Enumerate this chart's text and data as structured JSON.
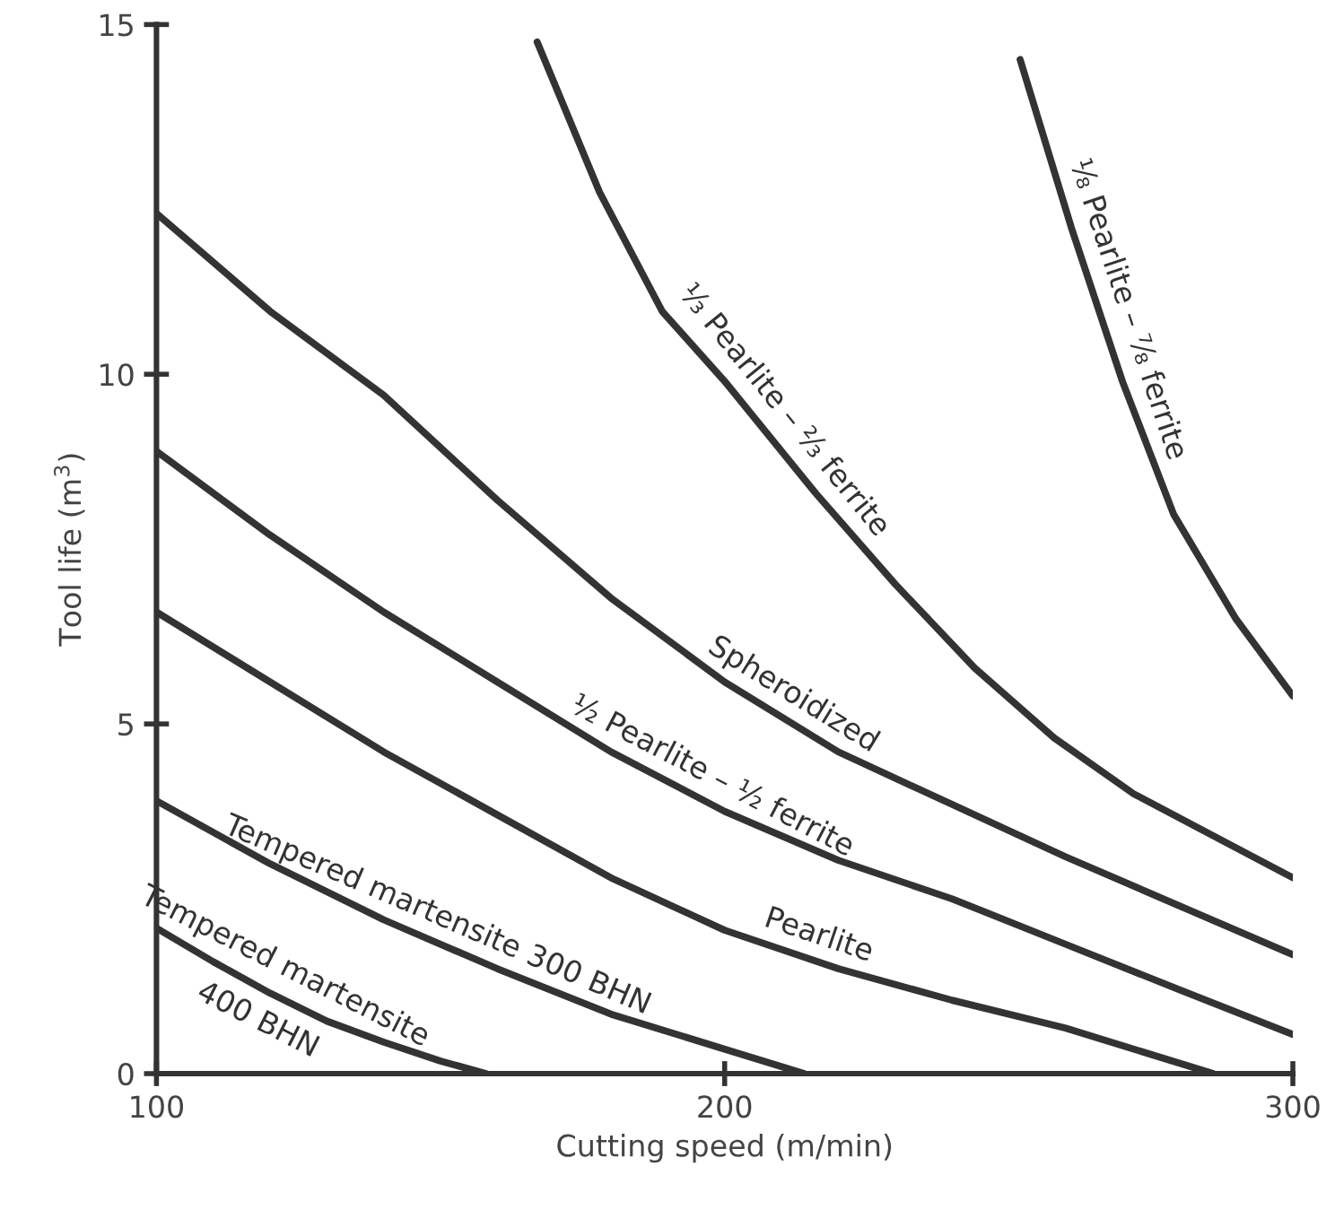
{
  "chart_data": {
    "type": "line",
    "xlabel": "Cutting speed (m/min)",
    "ylabel": "Tool life (m$^{3}$)",
    "xlim": [
      100,
      300
    ],
    "xticks": [
      100,
      200,
      300
    ],
    "ylim": [
      0,
      15
    ],
    "yticks": [
      0,
      5,
      10,
      15
    ],
    "grid": false,
    "legend": false,
    "marker": "none",
    "line_style": "solid",
    "series": [
      {
        "name": "Tempered martensite\n400 BHN",
        "color": "#333333",
        "x": [
          100,
          110,
          120,
          130,
          140,
          150,
          158
        ],
        "values": [
          2.08,
          1.6,
          1.15,
          0.75,
          0.45,
          0.18,
          0
        ]
      },
      {
        "name": "Tempered martensite 300 BHN",
        "color": "#333333",
        "x": [
          100,
          120,
          140,
          160,
          180,
          200,
          214
        ],
        "values": [
          3.9,
          3.0,
          2.2,
          1.5,
          0.85,
          0.35,
          0
        ]
      },
      {
        "name": "Pearlite",
        "color": "#333333",
        "x": [
          100,
          120,
          140,
          160,
          180,
          200,
          220,
          240,
          260,
          286
        ],
        "values": [
          6.6,
          5.6,
          4.6,
          3.7,
          2.8,
          2.05,
          1.5,
          1.05,
          0.65,
          0
        ]
      },
      {
        "name": "½ Pearlite – ½ ferrite",
        "color": "#333333",
        "x": [
          100,
          120,
          140,
          160,
          180,
          200,
          220,
          240,
          260,
          280,
          300
        ],
        "values": [
          8.9,
          7.7,
          6.6,
          5.6,
          4.6,
          3.75,
          3.05,
          2.5,
          1.85,
          1.2,
          0.56
        ]
      },
      {
        "name": "Spheroidized",
        "color": "#333333",
        "x": [
          100,
          120,
          140,
          160,
          180,
          200,
          220,
          240,
          260,
          280,
          300
        ],
        "values": [
          12.3,
          10.9,
          9.7,
          8.2,
          6.8,
          5.6,
          4.6,
          3.85,
          3.1,
          2.4,
          1.7
        ]
      },
      {
        "name": "⅓ Pearlite – ⅔ ferrite",
        "color": "#333333",
        "x": [
          167,
          178,
          189,
          200,
          216,
          230,
          244,
          258,
          272,
          286,
          300
        ],
        "values": [
          14.75,
          12.6,
          10.9,
          9.9,
          8.3,
          7.0,
          5.8,
          4.8,
          4.0,
          3.4,
          2.8
        ]
      },
      {
        "name": "⅛ Pearlite – ⅞ ferrite",
        "color": "#333333",
        "x": [
          252,
          261,
          270,
          279,
          290,
          300
        ],
        "values": [
          14.5,
          12.1,
          9.9,
          8.0,
          6.5,
          5.4
        ]
      }
    ]
  }
}
